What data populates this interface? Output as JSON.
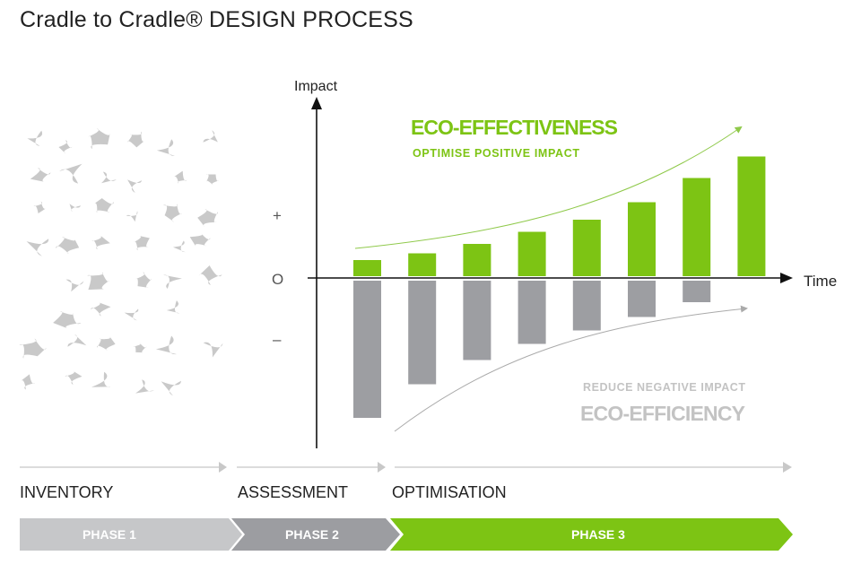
{
  "title": "Cradle to Cradle® DESIGN PROCESS",
  "colors": {
    "green": "#7dc414",
    "gray_bar": "#9d9ea2",
    "light_gray": "#c6c7c9",
    "mid_gray": "#9c9da1",
    "blob": "#c9c9c9",
    "text_gray": "#c3c3c3"
  },
  "chart_data": {
    "type": "bar",
    "x_label": "Time",
    "y_label": "Impact",
    "y_ticks": [
      "+",
      "O",
      "–"
    ],
    "series": [
      {
        "name": "Eco-effectiveness (positive impact)",
        "values": [
          1.2,
          1.7,
          2.4,
          3.3,
          4.2,
          5.5,
          7.3,
          8.9
        ]
      },
      {
        "name": "Eco-efficiency (negative impact)",
        "values": [
          -10.2,
          -7.7,
          -5.9,
          -4.7,
          -3.7,
          -2.7,
          -1.6,
          0
        ]
      }
    ],
    "annotations": {
      "eco_effectiveness": "ECO-EFFECTIVENESS",
      "optimise": "OPTIMISE POSITIVE IMPACT",
      "reduce": "REDUCE NEGATIVE IMPACT",
      "eco_efficiency": "ECO-EFFICIENCY"
    }
  },
  "phases": [
    {
      "stage": "INVENTORY",
      "label": "PHASE 1"
    },
    {
      "stage": "ASSESSMENT",
      "label": "PHASE 2"
    },
    {
      "stage": "OPTIMISATION",
      "label": "PHASE 3"
    }
  ]
}
